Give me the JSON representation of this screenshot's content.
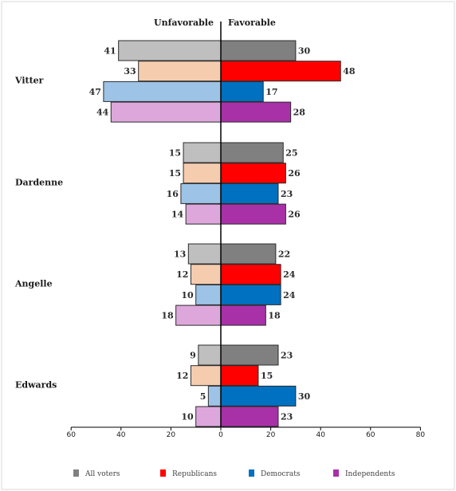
{
  "chart_data": {
    "type": "bar",
    "orientation": "horizontal-diverging",
    "headers": {
      "left": "Unfavorable",
      "right": "Favorable"
    },
    "categories": [
      "Vitter",
      "Dardenne",
      "Angelle",
      "Edwards"
    ],
    "series": [
      {
        "name": "All voters",
        "color": "#808080",
        "color_light": "#c0bfbf",
        "favorable": [
          30,
          25,
          22,
          23
        ],
        "unfavorable": [
          41,
          15,
          13,
          9
        ]
      },
      {
        "name": "Republicans",
        "color": "#ff0000",
        "color_light": "#f6ccaf",
        "favorable": [
          48,
          26,
          24,
          15
        ],
        "unfavorable": [
          33,
          15,
          12,
          12
        ]
      },
      {
        "name": "Democrats",
        "color": "#0070c0",
        "color_light": "#9dc3e6",
        "favorable": [
          17,
          23,
          24,
          30
        ],
        "unfavorable": [
          47,
          16,
          10,
          5
        ]
      },
      {
        "name": "Independents",
        "color": "#a831a8",
        "color_light": "#dda7dc",
        "favorable": [
          28,
          26,
          18,
          23
        ],
        "unfavorable": [
          44,
          14,
          18,
          10
        ]
      }
    ],
    "xlim": [
      -60,
      80
    ],
    "xticks": [
      -60,
      -40,
      -20,
      0,
      20,
      40,
      60,
      80
    ],
    "xtick_labels": [
      "60",
      "40",
      "20",
      "0",
      "20",
      "40",
      "60",
      "80"
    ],
    "legend_position": "bottom",
    "grid": false
  }
}
